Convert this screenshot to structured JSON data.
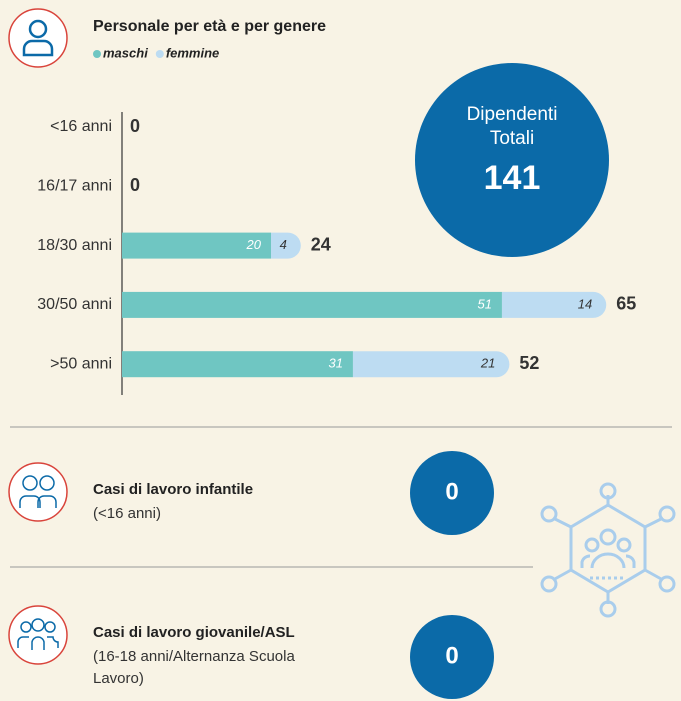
{
  "chart_data": {
    "type": "bar",
    "orientation": "horizontal",
    "stacked": true,
    "title": "Personale per età e per genere",
    "categories": [
      "<16 anni",
      "16/17 anni",
      "18/30 anni",
      "30/50 anni",
      ">50 anni"
    ],
    "series": [
      {
        "name": "maschi",
        "color": "#6fc6c2",
        "values": [
          0,
          0,
          20,
          51,
          31
        ]
      },
      {
        "name": "femmine",
        "color": "#bddcf2",
        "values": [
          0,
          0,
          4,
          14,
          21
        ]
      }
    ],
    "totals": [
      0,
      0,
      24,
      65,
      52
    ]
  },
  "total_employees": {
    "label": [
      "Dipendenti",
      "Totali"
    ],
    "value": 141,
    "color": "#0b6aa8"
  },
  "cases": [
    {
      "title": "Casi di lavoro infantile",
      "subtitle": "(<16 anni)",
      "value": 0
    },
    {
      "title": "Casi di lavoro giovanile/ASL",
      "subtitle": "(16-18 anni/Alternanza Scuola Lavoro)",
      "value": 0
    }
  ]
}
